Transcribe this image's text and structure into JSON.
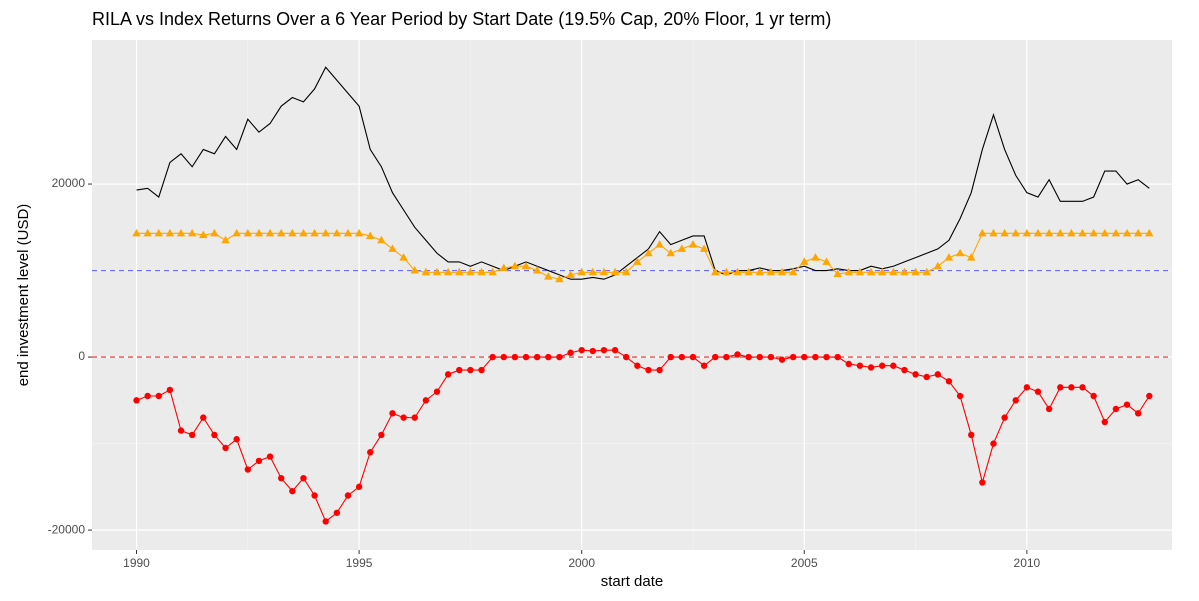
{
  "chart_data": {
    "type": "line",
    "title": "RILA vs Index Returns Over a 6 Year Period by Start Date (19.5% Cap, 20% Floor, 1 yr term)",
    "x_label": "start date",
    "y_label": "end investment level (USD)",
    "x": [
      1990,
      1990.25,
      1990.5,
      1990.75,
      1991,
      1991.25,
      1991.5,
      1991.75,
      1992,
      1992.25,
      1992.5,
      1992.75,
      1993,
      1993.25,
      1993.5,
      1993.75,
      1994,
      1994.25,
      1994.5,
      1994.75,
      1995,
      1995.25,
      1995.5,
      1995.75,
      1996,
      1996.25,
      1996.5,
      1996.75,
      1997,
      1997.25,
      1997.5,
      1997.75,
      1998,
      1998.25,
      1998.5,
      1998.75,
      1999,
      1999.25,
      1999.5,
      1999.75,
      2000,
      2000.25,
      2000.5,
      2000.75,
      2001,
      2001.25,
      2001.5,
      2001.75,
      2002,
      2002.25,
      2002.5,
      2002.75,
      2003,
      2003.25,
      2003.5,
      2003.75,
      2004,
      2004.25,
      2004.5,
      2004.75,
      2005,
      2005.25,
      2005.5,
      2005.75,
      2006,
      2006.25,
      2006.5,
      2006.75,
      2007,
      2007.25,
      2007.5,
      2007.75,
      2008,
      2008.25,
      2008.5,
      2008.75,
      2009,
      2009.25,
      2009.5,
      2009.75,
      2010,
      2010.25,
      2010.5,
      2010.75,
      2011,
      2011.25,
      2011.5,
      2011.75,
      2012,
      2012.25,
      2012.5,
      2012.75
    ],
    "series": [
      {
        "color": "#000000",
        "marker": "none",
        "values": [
          19300,
          19500,
          18500,
          22500,
          23500,
          22000,
          24000,
          23500,
          25500,
          24000,
          27500,
          26000,
          27000,
          29000,
          30000,
          29500,
          31000,
          33500,
          32000,
          30500,
          29000,
          24000,
          22000,
          19000,
          17000,
          15000,
          13500,
          12000,
          11000,
          11000,
          10500,
          11000,
          10500,
          10000,
          10500,
          11000,
          10500,
          10000,
          9500,
          9000,
          9000,
          9200,
          9000,
          9500,
          10500,
          11500,
          12500,
          14500,
          13000,
          13500,
          14000,
          14000,
          10000,
          9500,
          10000,
          10000,
          10300,
          10000,
          10000,
          10200,
          10500,
          10000,
          10000,
          10200,
          10000,
          10000,
          10500,
          10200,
          10500,
          11000,
          11500,
          12000,
          12500,
          13500,
          16000,
          19000,
          24000,
          28000,
          24000,
          21000,
          19000,
          18500,
          20500,
          18000,
          18000,
          18000,
          18500,
          21500,
          21500,
          20000,
          20500,
          19500
        ]
      },
      {
        "color": "#ffa500",
        "marker": "triangle",
        "values": [
          14300,
          14300,
          14300,
          14300,
          14300,
          14300,
          14100,
          14300,
          13500,
          14300,
          14300,
          14300,
          14300,
          14300,
          14300,
          14300,
          14300,
          14300,
          14300,
          14300,
          14300,
          14000,
          13500,
          12500,
          11500,
          10000,
          9800,
          9800,
          9800,
          9800,
          9800,
          9800,
          9800,
          10300,
          10500,
          10500,
          10000,
          9300,
          9000,
          9500,
          9800,
          9800,
          9800,
          9800,
          9800,
          11000,
          12000,
          13000,
          12000,
          12500,
          13000,
          12500,
          9800,
          9800,
          9800,
          9800,
          9800,
          9800,
          9800,
          9800,
          11000,
          11500,
          11000,
          9600,
          9800,
          9800,
          9800,
          9800,
          9800,
          9800,
          9800,
          9800,
          10500,
          11500,
          12000,
          11500,
          14300,
          14300,
          14300,
          14300,
          14300,
          14300,
          14300,
          14300,
          14300,
          14300,
          14300,
          14300,
          14300,
          14300,
          14300,
          14300
        ]
      },
      {
        "color": "#ff0000",
        "marker": "circle",
        "values": [
          -5000,
          -4500,
          -4500,
          -3800,
          -8500,
          -9000,
          -7000,
          -9000,
          -10500,
          -9500,
          -13000,
          -12000,
          -11500,
          -14000,
          -15500,
          -14000,
          -16000,
          -19000,
          -18000,
          -16000,
          -15000,
          -11000,
          -9000,
          -6500,
          -7000,
          -7000,
          -5000,
          -4000,
          -2000,
          -1500,
          -1500,
          -1500,
          0,
          0,
          0,
          0,
          0,
          0,
          0,
          500,
          800,
          700,
          800,
          800,
          0,
          -1000,
          -1500,
          -1500,
          0,
          0,
          0,
          -1000,
          0,
          0,
          300,
          0,
          0,
          0,
          -300,
          0,
          0,
          0,
          0,
          0,
          -800,
          -1000,
          -1200,
          -1000,
          -1000,
          -1500,
          -2000,
          -2300,
          -2000,
          -2800,
          -4500,
          -9000,
          -14500,
          -10000,
          -7000,
          -5000,
          -3500,
          -4000,
          -6000,
          -3500,
          -3500,
          -3500,
          -4500,
          -7500,
          -6000,
          -5500,
          -6500,
          -4500
        ]
      }
    ],
    "reference_lines": [
      {
        "value": 10000,
        "color": "#6b6bff"
      },
      {
        "value": 0,
        "color": "#e8302f"
      }
    ],
    "xlim": [
      1989.0,
      2013.26
    ],
    "ylim": [
      -22300,
      36650
    ],
    "xticks": [
      1990,
      1995,
      2000,
      2005,
      2010
    ],
    "yticks": [
      -20000,
      0,
      20000
    ],
    "grid": true
  }
}
